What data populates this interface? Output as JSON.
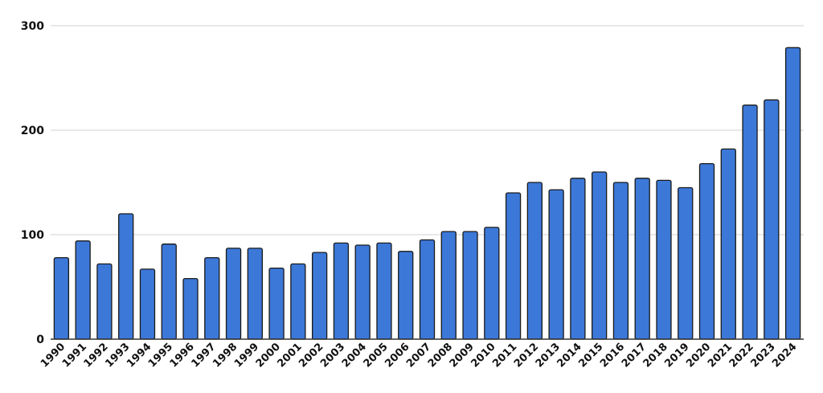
{
  "chart_data": {
    "type": "bar",
    "title": "",
    "xlabel": "",
    "ylabel": "",
    "ylim": [
      0,
      300
    ],
    "yticks": [
      0,
      100,
      200,
      300
    ],
    "grid": true,
    "bar_color": "#3c78d8",
    "bar_stroke": "#1a1a1a",
    "categories": [
      "1990",
      "1991",
      "1992",
      "1993",
      "1994",
      "1995",
      "1996",
      "1997",
      "1998",
      "1999",
      "2000",
      "2001",
      "2002",
      "2003",
      "2004",
      "2005",
      "2006",
      "2007",
      "2008",
      "2009",
      "2010",
      "2011",
      "2012",
      "2013",
      "2014",
      "2015",
      "2016",
      "2017",
      "2018",
      "2019",
      "2020",
      "2021",
      "2022",
      "2023",
      "2024"
    ],
    "values": [
      78,
      94,
      72,
      120,
      67,
      91,
      58,
      78,
      87,
      87,
      68,
      72,
      83,
      92,
      90,
      92,
      84,
      95,
      103,
      103,
      107,
      140,
      150,
      143,
      154,
      160,
      150,
      154,
      152,
      145,
      168,
      182,
      224,
      229,
      279
    ]
  }
}
